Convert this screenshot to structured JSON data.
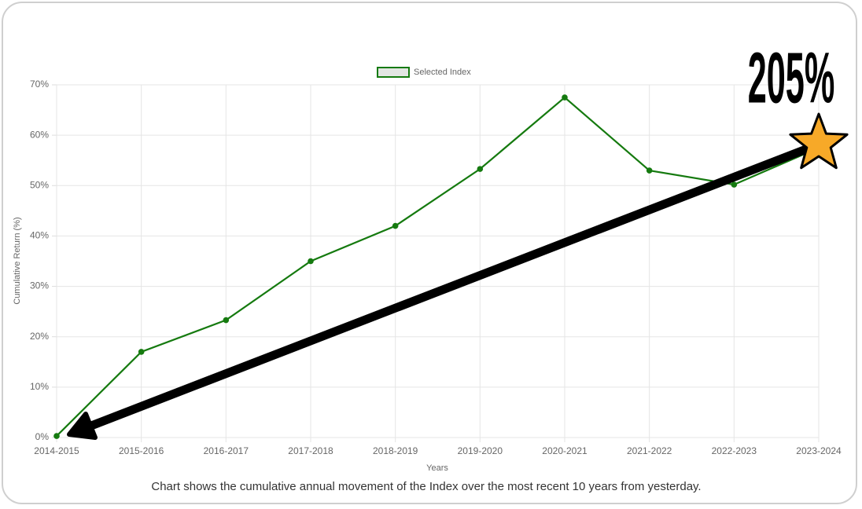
{
  "chart_data": {
    "type": "line",
    "categories": [
      "2014-2015",
      "2015-2016",
      "2016-2017",
      "2017-2018",
      "2018-2019",
      "2019-2020",
      "2020-2021",
      "2021-2022",
      "2022-2023",
      "2023-2024"
    ],
    "series": [
      {
        "name": "Selected Index",
        "color": "#157a0f",
        "values": [
          0.3,
          17,
          23.3,
          35,
          42,
          53.3,
          67.5,
          53,
          50.2,
          57.5
        ]
      }
    ],
    "ylim": [
      0,
      70
    ],
    "yticks": [
      {
        "value": 0,
        "label": "0%"
      },
      {
        "value": 10,
        "label": "10%"
      },
      {
        "value": 20,
        "label": "20%"
      },
      {
        "value": 30,
        "label": "30%"
      },
      {
        "value": 40,
        "label": "40%"
      },
      {
        "value": 50,
        "label": "50%"
      },
      {
        "value": 60,
        "label": "60%"
      },
      {
        "value": 70,
        "label": "70%"
      }
    ],
    "grid": true,
    "legend": "top",
    "x_label": "Years",
    "y_label": "Cumulative Return (%)",
    "caption": "Chart shows the cumulative annual movement of the Index over the most recent 10 years from yesterday.",
    "annotation": "205%"
  }
}
